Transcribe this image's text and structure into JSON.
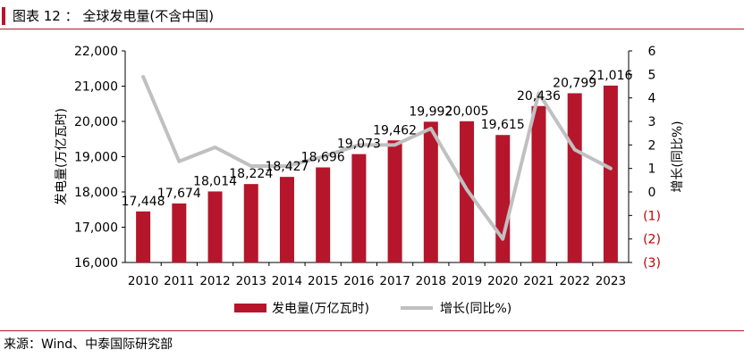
{
  "title": "图表 12 ： 全球发电量(不含中国)",
  "source": "来源：Wind、中泰国际研究部",
  "colors": {
    "accent": "#b5162b",
    "bar": "#b5162b",
    "line": "#c0c0c0",
    "negative_tick": "#c00000"
  },
  "chart_data": {
    "type": "bar",
    "categories": [
      "2010",
      "2011",
      "2012",
      "2013",
      "2014",
      "2015",
      "2016",
      "2017",
      "2018",
      "2019",
      "2020",
      "2021",
      "2022",
      "2023"
    ],
    "series": [
      {
        "name": "发电量(万亿瓦时)",
        "type": "bar",
        "axis": "left",
        "values": [
          17448,
          17674,
          18014,
          18224,
          18427,
          18696,
          19073,
          19462,
          19992,
          20005,
          19615,
          20436,
          20799,
          21016
        ],
        "labels": [
          "17,448",
          "17,674",
          "18,014",
          "18,224",
          "18,427",
          "18,696",
          "19,073",
          "19,462",
          "19,992",
          "20,005",
          "19,615",
          "20,436",
          "20,799",
          "21,016"
        ]
      },
      {
        "name": "增长(同比%)",
        "type": "line",
        "axis": "right",
        "values": [
          4.9,
          1.3,
          1.9,
          1.1,
          1.1,
          1.5,
          2.0,
          2.0,
          2.7,
          0.1,
          -2.0,
          4.2,
          1.8,
          1.0
        ]
      }
    ],
    "ylabel": "发电量(万亿瓦时)",
    "y2label": "增长(同比%)",
    "ylim": [
      16000,
      22000
    ],
    "y2lim": [
      -3,
      6
    ],
    "yticks": [
      "22,000",
      "21,000",
      "20,000",
      "19,000",
      "18,000",
      "17,000",
      "16,000"
    ],
    "yticks_values": [
      22000,
      21000,
      20000,
      19000,
      18000,
      17000,
      16000
    ],
    "y2ticks": [
      "6",
      "5",
      "4",
      "3",
      "2",
      "1",
      "0",
      "(1)",
      "(2)",
      "(3)"
    ],
    "y2ticks_values": [
      6,
      5,
      4,
      3,
      2,
      1,
      0,
      -1,
      -2,
      -3
    ],
    "legend": [
      "发电量(万亿瓦时)",
      "增长(同比%)"
    ],
    "legend_position": "bottom",
    "grid": false
  }
}
